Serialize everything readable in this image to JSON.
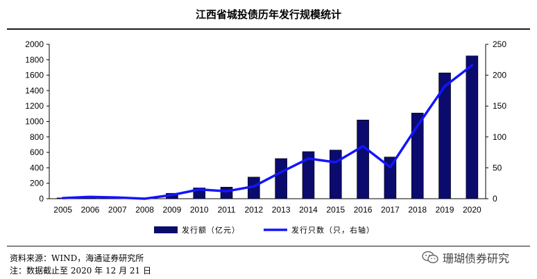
{
  "chart_data": {
    "type": "bar+line",
    "title": "江西省城投债历年发行规模统计",
    "categories": [
      "2005",
      "2006",
      "2007",
      "2008",
      "2009",
      "2010",
      "2011",
      "2012",
      "2013",
      "2014",
      "2015",
      "2016",
      "2017",
      "2018",
      "2019",
      "2020"
    ],
    "series": [
      {
        "name": "发行额（亿元）",
        "kind": "bar",
        "axis": "left",
        "values": [
          10,
          20,
          10,
          0,
          70,
          140,
          150,
          280,
          520,
          610,
          630,
          1020,
          540,
          1110,
          1630,
          1850
        ]
      },
      {
        "name": "发行只数（只，右轴）",
        "kind": "line",
        "axis": "right",
        "values": [
          1,
          3,
          2,
          0,
          6,
          15,
          12,
          20,
          43,
          65,
          59,
          85,
          51,
          118,
          182,
          216
        ]
      }
    ],
    "y_left": {
      "min": 0,
      "max": 2000,
      "step": 200,
      "ticks": [
        "0",
        "200",
        "400",
        "600",
        "800",
        "1000",
        "1200",
        "1400",
        "1600",
        "1800",
        "2000"
      ]
    },
    "y_right": {
      "min": 0,
      "max": 250,
      "step": 50,
      "ticks": [
        "0",
        "50",
        "100",
        "150",
        "200",
        "250"
      ]
    },
    "colors": {
      "bar": "#0b0b6e",
      "line": "#1414ff"
    },
    "legend_position": "bottom-center"
  },
  "footer": {
    "source": "资料来源：WIND，海通证券研究所",
    "note": "注：数据截止至 2020 年 12 月 21 日"
  },
  "watermark": {
    "text": "珊瑚债券研究",
    "icon": "wechat-icon"
  }
}
